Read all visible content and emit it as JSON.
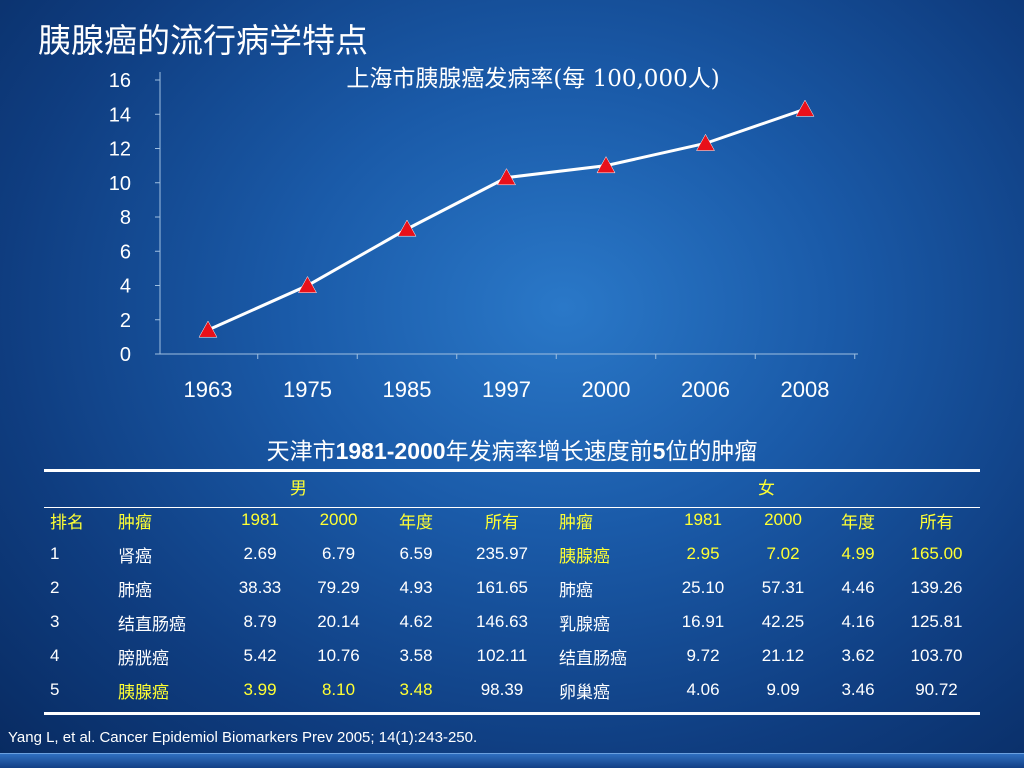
{
  "slide_title": "胰腺癌的流行病学特点",
  "chart_data": {
    "type": "line",
    "title": "上海市胰腺癌发病率(每 100,000人)",
    "categories": [
      "1963",
      "1975",
      "1985",
      "1997",
      "2000",
      "2006",
      "2008"
    ],
    "series": [
      {
        "values": [
          1.4,
          4.0,
          7.3,
          10.3,
          11.0,
          12.3,
          14.3
        ]
      }
    ],
    "ylim": [
      0,
      16
    ],
    "yticks": [
      "0",
      "2",
      "4",
      "6",
      "8",
      "10",
      "12",
      "14",
      "16"
    ],
    "marker": "triangle",
    "colors": {
      "line": "#ffffff",
      "marker": "#e8101a",
      "tick": "#ffffff"
    }
  },
  "table": {
    "title_pre": "天津市",
    "title_years": "1981-2000",
    "title_mid": "年发病率增长速度前",
    "title_num": "5",
    "title_post": "位的肿瘤",
    "group_male": "男",
    "group_female": "女",
    "headers": [
      "排名",
      "肿瘤",
      "1981",
      "2000",
      "年度",
      "所有",
      "肿瘤",
      "1981",
      "2000",
      "年度",
      "所有"
    ],
    "rows": [
      [
        "1",
        "肾癌",
        "2.69",
        "6.79",
        "6.59",
        "235.97",
        "胰腺癌",
        "2.95",
        "7.02",
        "4.99",
        "165.00"
      ],
      [
        "2",
        "肺癌",
        "38.33",
        "79.29",
        "4.93",
        "161.65",
        "肺癌",
        "25.10",
        "57.31",
        "4.46",
        "139.26"
      ],
      [
        "3",
        "结直肠癌",
        "8.79",
        "20.14",
        "4.62",
        "146.63",
        "乳腺癌",
        "16.91",
        "42.25",
        "4.16",
        "125.81"
      ],
      [
        "4",
        "膀胱癌",
        "5.42",
        "10.76",
        "3.58",
        "102.11",
        "结直肠癌",
        "9.72",
        "21.12",
        "3.62",
        "103.70"
      ],
      [
        "5",
        "胰腺癌",
        "3.99",
        "8.10",
        "3.48",
        "98.39",
        "卵巢癌",
        "4.06",
        "9.09",
        "3.46",
        "90.72"
      ]
    ],
    "highlight_color": "#ffff33"
  },
  "reference": "Yang L, et al. Cancer Epidemiol Biomarkers Prev 2005; 14(1):243-250."
}
